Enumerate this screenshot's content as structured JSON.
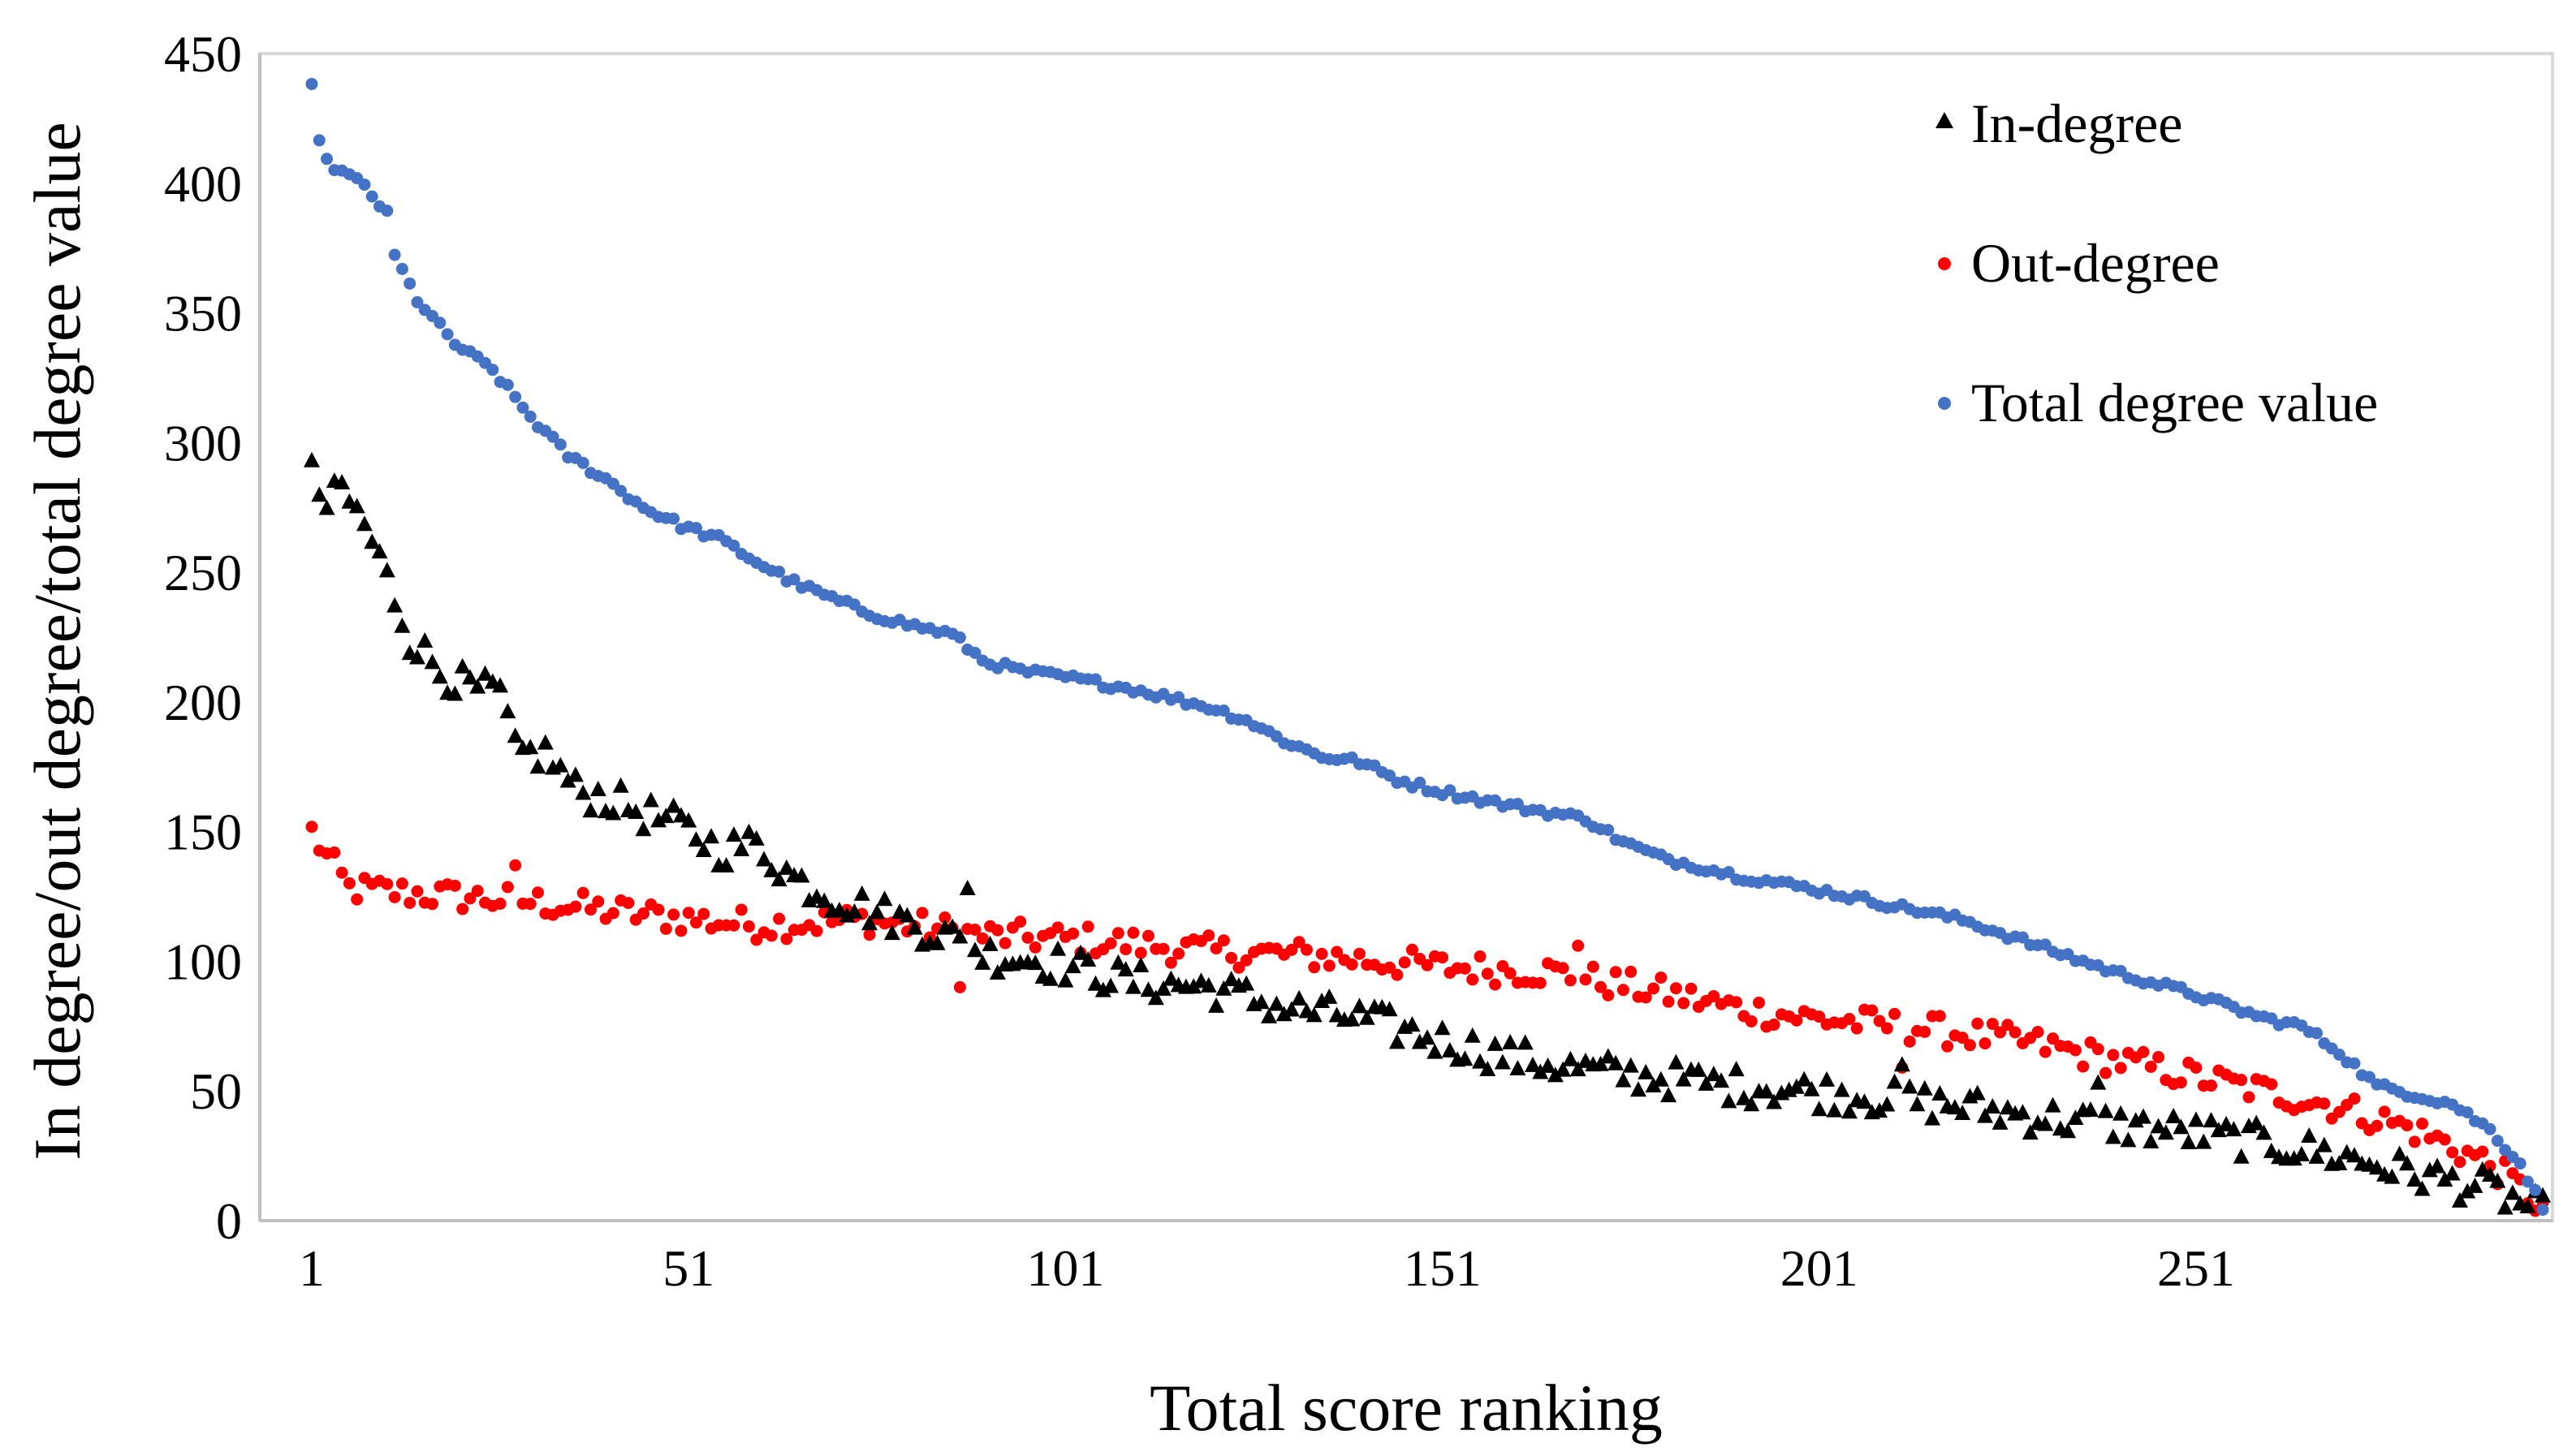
{
  "chart_data": {
    "type": "scatter",
    "title": "",
    "xlabel": "Total score ranking",
    "ylabel": "In degree/out degree/total degree value",
    "xlim": [
      1,
      297
    ],
    "ylim": [
      0,
      450
    ],
    "x_ticks": [
      "1",
      "51",
      "101",
      "151",
      "201",
      "251"
    ],
    "x_tick_values": [
      1,
      51,
      101,
      151,
      201,
      251
    ],
    "y_ticks": [
      "0",
      "50",
      "100",
      "150",
      "200",
      "250",
      "300",
      "350",
      "400",
      "450"
    ],
    "y_tick_values": [
      0,
      50,
      100,
      150,
      200,
      250,
      300,
      350,
      400,
      450
    ],
    "grid": false,
    "legend_position": "top-right",
    "series": [
      {
        "name": "In-degree",
        "marker": "triangle",
        "color": "#000000",
        "anchors": [
          [
            1,
            287
          ],
          [
            3,
            275
          ],
          [
            5,
            282
          ],
          [
            8,
            268
          ],
          [
            10,
            255
          ],
          [
            12,
            240
          ],
          [
            14,
            225
          ],
          [
            18,
            212
          ],
          [
            22,
            205
          ],
          [
            26,
            203
          ],
          [
            28,
            180
          ],
          [
            32,
            180
          ],
          [
            36,
            166
          ],
          [
            40,
            163
          ],
          [
            45,
            157
          ],
          [
            50,
            152
          ],
          [
            55,
            143
          ],
          [
            60,
            145
          ],
          [
            65,
            132
          ],
          [
            70,
            125
          ],
          [
            75,
            120
          ],
          [
            80,
            115
          ],
          [
            85,
            110
          ],
          [
            90,
            103
          ],
          [
            95,
            101
          ],
          [
            100,
            99
          ],
          [
            110,
            92
          ],
          [
            120,
            90
          ],
          [
            130,
            82
          ],
          [
            140,
            78
          ],
          [
            150,
            70
          ],
          [
            160,
            63
          ],
          [
            170,
            58
          ],
          [
            180,
            55
          ],
          [
            190,
            52
          ],
          [
            200,
            50
          ],
          [
            210,
            47
          ],
          [
            220,
            44
          ],
          [
            230,
            40
          ],
          [
            240,
            37
          ],
          [
            250,
            34
          ],
          [
            260,
            30
          ],
          [
            270,
            25
          ],
          [
            280,
            18
          ],
          [
            290,
            12
          ],
          [
            297,
            3
          ]
        ],
        "spread": 7,
        "outliers": [
          [
            88,
            128
          ],
          [
            238,
            53
          ],
          [
            212,
            60
          ]
        ]
      },
      {
        "name": "Out-degree",
        "marker": "circle",
        "color": "#ff0000",
        "anchors": [
          [
            1,
            150
          ],
          [
            3,
            140
          ],
          [
            6,
            128
          ],
          [
            15,
            126
          ],
          [
            30,
            123
          ],
          [
            45,
            118
          ],
          [
            60,
            114
          ],
          [
            75,
            116
          ],
          [
            90,
            110
          ],
          [
            105,
            108
          ],
          [
            120,
            104
          ],
          [
            135,
            102
          ],
          [
            150,
            98
          ],
          [
            165,
            96
          ],
          [
            180,
            88
          ],
          [
            190,
            82
          ],
          [
            200,
            78
          ],
          [
            215,
            74
          ],
          [
            230,
            68
          ],
          [
            240,
            62
          ],
          [
            250,
            56
          ],
          [
            260,
            50
          ],
          [
            270,
            44
          ],
          [
            280,
            35
          ],
          [
            290,
            22
          ],
          [
            297,
            5
          ]
        ],
        "spread": 6,
        "outliers": [
          [
            87,
            90
          ],
          [
            28,
            137
          ],
          [
            169,
            106
          ],
          [
            212,
            59
          ]
        ]
      },
      {
        "name": "Total degree value",
        "marker": "circle",
        "color": "#4472c4",
        "anchors": [
          [
            1,
            437
          ],
          [
            2,
            418
          ],
          [
            3,
            408
          ],
          [
            8,
            399
          ],
          [
            11,
            388
          ],
          [
            12,
            372
          ],
          [
            15,
            355
          ],
          [
            20,
            338
          ],
          [
            25,
            328
          ],
          [
            30,
            310
          ],
          [
            35,
            295
          ],
          [
            40,
            286
          ],
          [
            45,
            275
          ],
          [
            50,
            268
          ],
          [
            55,
            263
          ],
          [
            60,
            254
          ],
          [
            65,
            246
          ],
          [
            70,
            240
          ],
          [
            75,
            234
          ],
          [
            80,
            230
          ],
          [
            86,
            226
          ],
          [
            90,
            216
          ],
          [
            95,
            212
          ],
          [
            100,
            210
          ],
          [
            110,
            205
          ],
          [
            120,
            198
          ],
          [
            125,
            193
          ],
          [
            130,
            185
          ],
          [
            135,
            179
          ],
          [
            140,
            177
          ],
          [
            145,
            170
          ],
          [
            150,
            166
          ],
          [
            160,
            160
          ],
          [
            170,
            155
          ],
          [
            175,
            146
          ],
          [
            180,
            140
          ],
          [
            190,
            133
          ],
          [
            200,
            128
          ],
          [
            210,
            122
          ],
          [
            220,
            116
          ],
          [
            230,
            106
          ],
          [
            240,
            96
          ],
          [
            250,
            88
          ],
          [
            260,
            78
          ],
          [
            265,
            75
          ],
          [
            270,
            65
          ],
          [
            275,
            52
          ],
          [
            285,
            45
          ],
          [
            290,
            35
          ],
          [
            294,
            22
          ],
          [
            297,
            5
          ]
        ],
        "spread": 1.5
      }
    ]
  }
}
